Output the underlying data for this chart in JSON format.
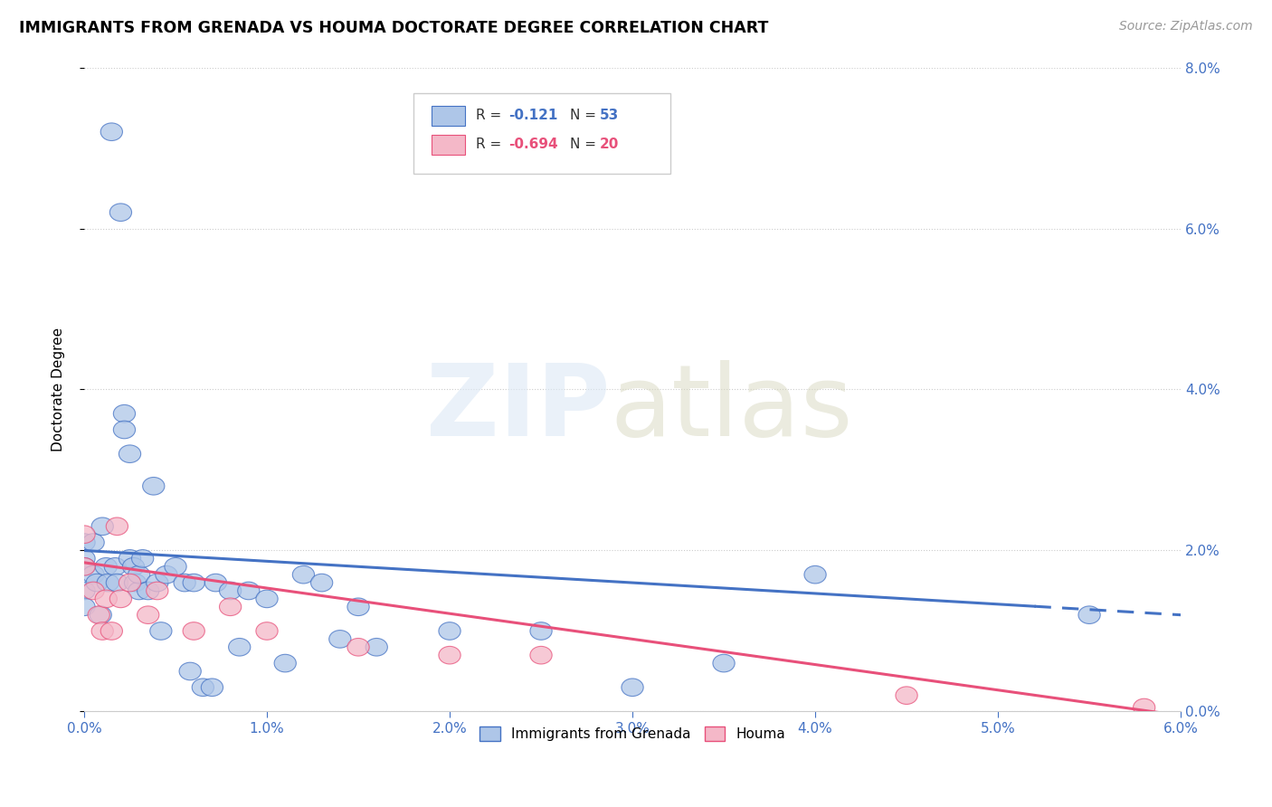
{
  "title": "IMMIGRANTS FROM GRENADA VS HOUMA DOCTORATE DEGREE CORRELATION CHART",
  "source": "Source: ZipAtlas.com",
  "ylabel": "Doctorate Degree",
  "xlim": [
    0.0,
    6.0
  ],
  "ylim": [
    0.0,
    8.0
  ],
  "grenada_R": "-0.121",
  "grenada_N": "53",
  "houma_R": "-0.694",
  "houma_N": "20",
  "grenada_color": "#aec6e8",
  "houma_color": "#f4b8c8",
  "grenada_line_color": "#4472c4",
  "houma_line_color": "#e8507a",
  "background_color": "#ffffff",
  "grenada_x": [
    0.0,
    0.0,
    0.0,
    0.0,
    0.0,
    0.05,
    0.05,
    0.07,
    0.09,
    0.1,
    0.12,
    0.13,
    0.15,
    0.17,
    0.18,
    0.2,
    0.22,
    0.22,
    0.25,
    0.25,
    0.27,
    0.28,
    0.3,
    0.3,
    0.32,
    0.35,
    0.38,
    0.4,
    0.42,
    0.45,
    0.5,
    0.55,
    0.58,
    0.6,
    0.65,
    0.7,
    0.72,
    0.8,
    0.85,
    0.9,
    1.0,
    1.1,
    1.2,
    1.3,
    1.4,
    1.5,
    1.6,
    2.0,
    2.5,
    3.0,
    3.5,
    4.0,
    5.5
  ],
  "grenada_y": [
    2.1,
    1.9,
    1.8,
    1.5,
    1.3,
    2.1,
    1.7,
    1.6,
    1.2,
    2.3,
    1.8,
    1.6,
    7.2,
    1.8,
    1.6,
    6.2,
    3.7,
    3.5,
    3.2,
    1.9,
    1.8,
    1.6,
    1.5,
    1.7,
    1.9,
    1.5,
    2.8,
    1.6,
    1.0,
    1.7,
    1.8,
    1.6,
    0.5,
    1.6,
    0.3,
    0.3,
    1.6,
    1.5,
    0.8,
    1.5,
    1.4,
    0.6,
    1.7,
    1.6,
    0.9,
    1.3,
    0.8,
    1.0,
    1.0,
    0.3,
    0.6,
    1.7,
    1.2
  ],
  "houma_x": [
    0.0,
    0.0,
    0.05,
    0.08,
    0.1,
    0.12,
    0.15,
    0.18,
    0.2,
    0.25,
    0.35,
    0.4,
    0.6,
    0.8,
    1.0,
    1.5,
    2.0,
    2.5,
    4.5,
    5.8
  ],
  "houma_y": [
    2.2,
    1.8,
    1.5,
    1.2,
    1.0,
    1.4,
    1.0,
    2.3,
    1.4,
    1.6,
    1.2,
    1.5,
    1.0,
    1.3,
    1.0,
    0.8,
    0.7,
    0.7,
    0.2,
    0.05
  ],
  "grenada_line_start_y": 2.0,
  "grenada_line_end_y": 1.2,
  "houma_line_start_y": 1.85,
  "houma_line_end_y": -0.05,
  "dashed_start_x": 5.2
}
